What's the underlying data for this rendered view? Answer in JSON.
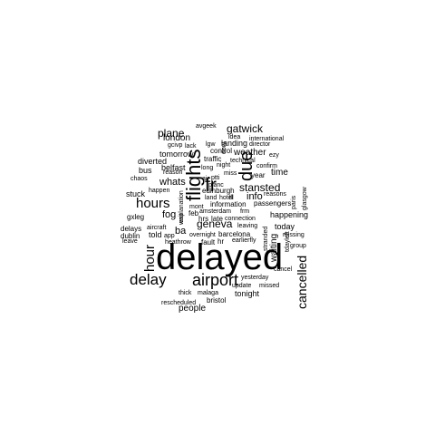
{
  "word_cloud": {
    "words": [
      {
        "text": "delayed"
      },
      {
        "text": "flights"
      },
      {
        "text": "airport"
      },
      {
        "text": "hours"
      },
      {
        "text": "delay"
      },
      {
        "text": "fr"
      },
      {
        "text": "due"
      },
      {
        "text": "hour"
      },
      {
        "text": "cancelled"
      },
      {
        "text": "stansted"
      },
      {
        "text": "geneva"
      },
      {
        "text": "info"
      },
      {
        "text": "gatwick"
      },
      {
        "text": "plane"
      },
      {
        "text": "london"
      },
      {
        "text": "whats"
      },
      {
        "text": "fog"
      },
      {
        "text": "people"
      },
      {
        "text": "tonight"
      },
      {
        "text": "time"
      },
      {
        "text": "weather"
      },
      {
        "text": "today"
      },
      {
        "text": "happening"
      },
      {
        "text": "waiting"
      },
      {
        "text": "landing"
      },
      {
        "text": "information"
      },
      {
        "text": "passengers"
      },
      {
        "text": "ba"
      },
      {
        "text": "edinburgh"
      },
      {
        "text": "stuck"
      },
      {
        "text": "told"
      },
      {
        "text": "bus"
      },
      {
        "text": "diverted"
      },
      {
        "text": "belfast"
      },
      {
        "text": "tomorrow"
      },
      {
        "text": "control"
      },
      {
        "text": "traffic"
      },
      {
        "text": "year"
      },
      {
        "text": "barcelona"
      },
      {
        "text": "idea"
      },
      {
        "text": "avgeek"
      },
      {
        "text": "international"
      },
      {
        "text": "director"
      },
      {
        "text": "gcivp"
      },
      {
        "text": "lack"
      },
      {
        "text": "lgw"
      },
      {
        "text": "dont"
      },
      {
        "text": "ezy"
      },
      {
        "text": "confirm"
      },
      {
        "text": "long"
      },
      {
        "text": "night"
      },
      {
        "text": "miss"
      },
      {
        "text": "technical"
      },
      {
        "text": "reason"
      },
      {
        "text": "chaos"
      },
      {
        "text": "air"
      },
      {
        "text": "ptti"
      },
      {
        "text": "planc"
      },
      {
        "text": "happen"
      },
      {
        "text": "land"
      },
      {
        "text": "hotel"
      },
      {
        "text": "lll"
      },
      {
        "text": "reasons"
      },
      {
        "text": "paris"
      },
      {
        "text": "glasgow"
      },
      {
        "text": "explanation"
      },
      {
        "text": "mont"
      },
      {
        "text": "feb"
      },
      {
        "text": "amsterdam"
      },
      {
        "text": "frm"
      },
      {
        "text": "wait"
      },
      {
        "text": "gxleg"
      },
      {
        "text": "hrs"
      },
      {
        "text": "late"
      },
      {
        "text": "connection"
      },
      {
        "text": "leaving"
      },
      {
        "text": "aircraft"
      },
      {
        "text": "delays"
      },
      {
        "text": "dublin"
      },
      {
        "text": "app"
      },
      {
        "text": "overnight"
      },
      {
        "text": "earlierfly"
      },
      {
        "text": "stranded"
      },
      {
        "text": "missing"
      },
      {
        "text": "leave"
      },
      {
        "text": "heathrow"
      },
      {
        "text": "fault"
      },
      {
        "text": "hr"
      },
      {
        "text": "tdayleft"
      },
      {
        "text": "group"
      },
      {
        "text": "yesterday"
      },
      {
        "text": "update"
      },
      {
        "text": "missed"
      },
      {
        "text": "cancel"
      },
      {
        "text": "thick"
      },
      {
        "text": "malaga"
      },
      {
        "text": "rescheduled"
      },
      {
        "text": "bristol"
      }
    ]
  }
}
